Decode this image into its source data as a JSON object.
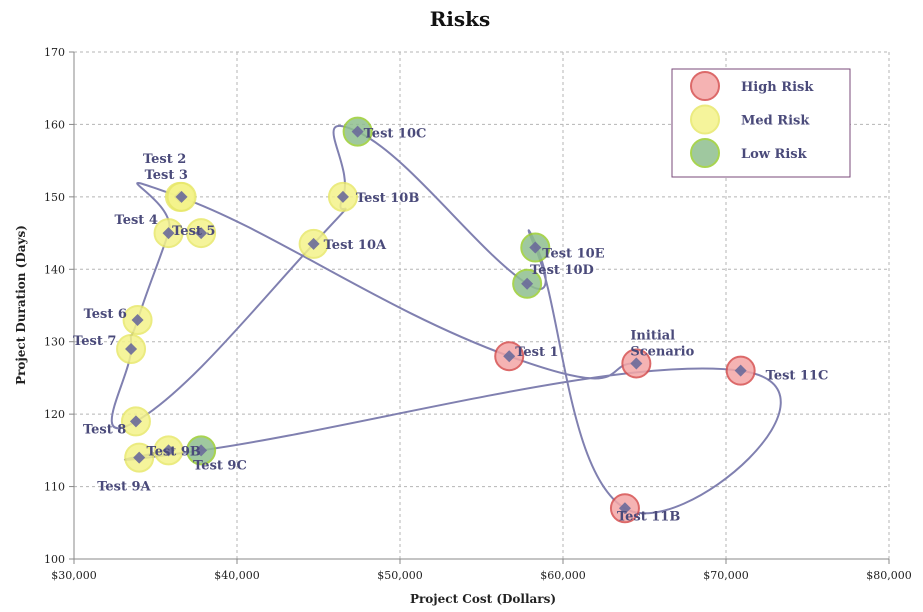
{
  "chart_data": {
    "type": "scatter",
    "title": "Risks",
    "xlabel": "Project Cost (Dollars)",
    "ylabel": "Project Duration (Days)",
    "xlim": [
      30000,
      80000
    ],
    "ylim": [
      100,
      170
    ],
    "x_ticks": [
      30000,
      40000,
      50000,
      60000,
      70000,
      80000
    ],
    "x_tick_labels": [
      "$30,000",
      "$40,000",
      "$50,000",
      "$60,000",
      "$70,000",
      "$80,000"
    ],
    "y_ticks": [
      100,
      110,
      120,
      130,
      140,
      150,
      160,
      170
    ],
    "y_tick_labels": [
      "100",
      "110",
      "120",
      "130",
      "140",
      "150",
      "160",
      "170"
    ],
    "grid": true,
    "legend_position": "top-right",
    "legend": [
      {
        "name": "High Risk",
        "color": "#f4a6a6",
        "edge": "#d65050"
      },
      {
        "name": "Med Risk",
        "color": "#f4f38a",
        "edge": "#e8e86a"
      },
      {
        "name": "Low Risk",
        "color": "#8fbf8f",
        "edge": "#9acd32"
      }
    ],
    "line_color": "#8080b0",
    "marker_color": "#6a6a9a",
    "points": [
      {
        "label": "Initial Scenario",
        "x": 64500,
        "y": 127,
        "risk": "High Risk"
      },
      {
        "label": "Test 1",
        "x": 56700,
        "y": 128,
        "risk": "High Risk"
      },
      {
        "label": "Test 2",
        "x": 36500,
        "y": 150,
        "risk": "Med Risk"
      },
      {
        "label": "Test 3",
        "x": 36600,
        "y": 150,
        "risk": "Med Risk"
      },
      {
        "label": "Test 4",
        "x": 35800,
        "y": 145,
        "risk": "Med Risk"
      },
      {
        "label": "Test 5",
        "x": 37800,
        "y": 145,
        "risk": "Med Risk"
      },
      {
        "label": "Test 6",
        "x": 33900,
        "y": 133,
        "risk": "Med Risk"
      },
      {
        "label": "Test 7",
        "x": 33500,
        "y": 129,
        "risk": "Med Risk"
      },
      {
        "label": "Test 8",
        "x": 33800,
        "y": 119,
        "risk": "Med Risk"
      },
      {
        "label": "Test 9A",
        "x": 34000,
        "y": 114,
        "risk": "Med Risk"
      },
      {
        "label": "Test 9B",
        "x": 35800,
        "y": 115,
        "risk": "Med Risk"
      },
      {
        "label": "Test 9C",
        "x": 37800,
        "y": 115,
        "risk": "Low Risk"
      },
      {
        "label": "Test 10A",
        "x": 44700,
        "y": 143.5,
        "risk": "Med Risk"
      },
      {
        "label": "Test 10B",
        "x": 46500,
        "y": 150,
        "risk": "Med Risk"
      },
      {
        "label": "Test 10C",
        "x": 47400,
        "y": 159,
        "risk": "Low Risk"
      },
      {
        "label": "Test 10D",
        "x": 57800,
        "y": 138,
        "risk": "Low Risk"
      },
      {
        "label": "Test 10E",
        "x": 58300,
        "y": 143,
        "risk": "Low Risk"
      },
      {
        "label": "Test 11B",
        "x": 63800,
        "y": 107,
        "risk": "High Risk"
      },
      {
        "label": "Test 11C",
        "x": 70900,
        "y": 126,
        "risk": "High Risk"
      }
    ],
    "path_order": [
      "Initial Scenario",
      "Test 1",
      "Test 2",
      "Test 4",
      "Test 6",
      "Test 7",
      "Test 8",
      "Test 10A",
      "Test 10B",
      "Test 10C",
      "Test 10D",
      "Test 10E",
      "Test 11B",
      "Test 11C",
      "Test 9C",
      "Test 9B",
      "Test 9A"
    ],
    "labels": [
      {
        "text": "Test 2",
        "x": 36500,
        "y": 150
      },
      {
        "text": "Test 3",
        "x": 36600,
        "y": 150
      },
      {
        "text": "Test 4",
        "x": 35800,
        "y": 145
      },
      {
        "text": "Test 5",
        "x": 37800,
        "y": 145
      },
      {
        "text": "Test 6",
        "x": 33900,
        "y": 133
      },
      {
        "text": "Test 7",
        "x": 33500,
        "y": 129
      },
      {
        "text": "Test 8",
        "x": 33800,
        "y": 119
      },
      {
        "text": "Test 9A",
        "x": 34000,
        "y": 114
      },
      {
        "text": "Test 9B",
        "x": 35800,
        "y": 115
      },
      {
        "text": "Test 9C",
        "x": 37800,
        "y": 115
      },
      {
        "text": "Test 10A",
        "x": 44700,
        "y": 143.5
      },
      {
        "text": "Test 10B",
        "x": 46500,
        "y": 150
      },
      {
        "text": "Test 10C",
        "x": 47400,
        "y": 159
      },
      {
        "text": "Test 10D",
        "x": 57800,
        "y": 138
      },
      {
        "text": "Test 10E",
        "x": 58300,
        "y": 143
      },
      {
        "text": "Test 1",
        "x": 56700,
        "y": 128
      },
      {
        "text": "Initial",
        "x": 64500,
        "y": 127
      },
      {
        "text": "Scenario",
        "x": 64500,
        "y": 127
      },
      {
        "text": "Test 11B",
        "x": 63800,
        "y": 107
      },
      {
        "text": "Test 11C",
        "x": 70900,
        "y": 126
      }
    ]
  }
}
